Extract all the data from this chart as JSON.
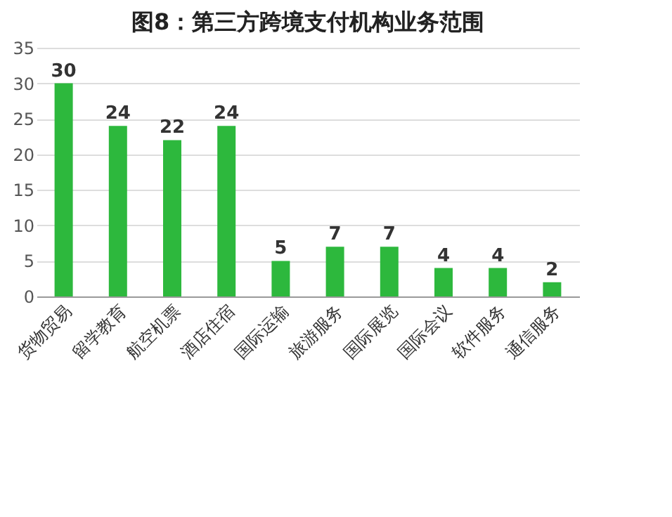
{
  "chart_data": {
    "type": "bar",
    "title": "图8：第三方跨境支付机构业务范围",
    "categories": [
      "货物贸易",
      "留学教育",
      "航空机票",
      "酒店住宿",
      "国际运输",
      "旅游服务",
      "国际展览",
      "国际会议",
      "软件服务",
      "通信服务"
    ],
    "values": [
      30,
      24,
      22,
      24,
      5,
      7,
      7,
      4,
      4,
      2
    ],
    "color": "#2db83d",
    "ylim": [
      0,
      35
    ],
    "yticks": [
      0,
      5,
      10,
      15,
      20,
      25,
      30,
      35
    ],
    "grid": "y",
    "data_labels": true
  }
}
